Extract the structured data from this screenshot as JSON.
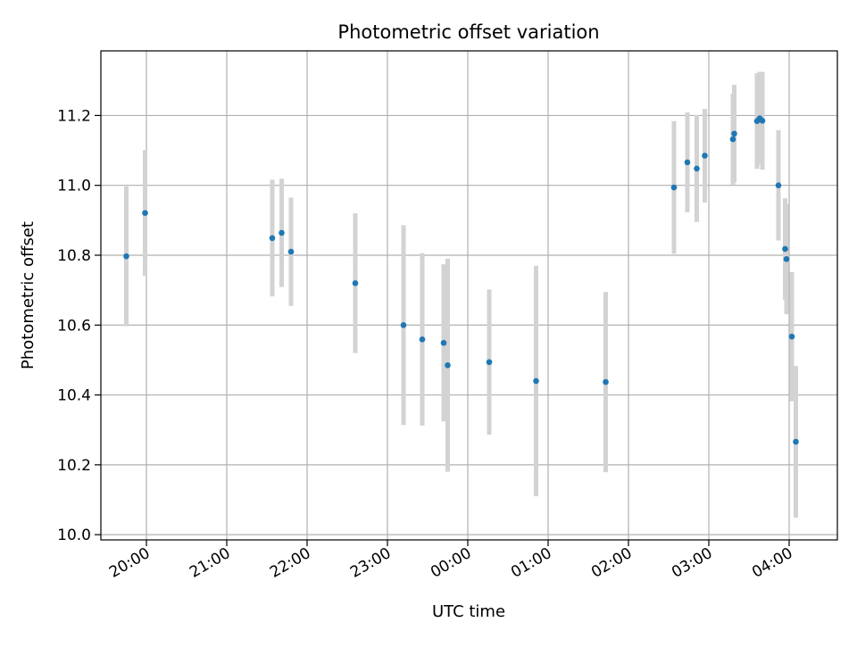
{
  "chart_data": {
    "type": "scatter",
    "title": "Photometric offset variation",
    "xlabel": "UTC time",
    "ylabel": "Photometric offset",
    "x_unit": "time",
    "xlim": [
      "19:26",
      "04:36"
    ],
    "ylim": [
      9.985,
      11.385
    ],
    "grid": true,
    "x_ticks": [
      "20:00",
      "21:00",
      "22:00",
      "23:00",
      "00:00",
      "01:00",
      "02:00",
      "03:00",
      "04:00"
    ],
    "y_ticks": [
      "10.0",
      "10.2",
      "10.4",
      "10.6",
      "10.8",
      "11.0",
      "11.2"
    ],
    "y_tick_values": [
      10.0,
      10.2,
      10.4,
      10.6,
      10.8,
      11.0,
      11.2
    ],
    "colors": {
      "points": "#1f77b4",
      "errorbars": "#d3d3d3",
      "grid": "#b0b0b0"
    },
    "series": [
      {
        "points": [
          {
            "x": "19:45",
            "y": 10.797,
            "yerr": 0.2
          },
          {
            "x": "19:59",
            "y": 10.921,
            "yerr": 0.18
          },
          {
            "x": "21:34",
            "y": 10.849,
            "yerr": 0.167
          },
          {
            "x": "21:41",
            "y": 10.864,
            "yerr": 0.155
          },
          {
            "x": "21:48",
            "y": 10.81,
            "yerr": 0.155
          },
          {
            "x": "22:36",
            "y": 10.72,
            "yerr": 0.2
          },
          {
            "x": "23:12",
            "y": 10.6,
            "yerr": 0.286
          },
          {
            "x": "23:26",
            "y": 10.559,
            "yerr": 0.247
          },
          {
            "x": "23:42",
            "y": 10.549,
            "yerr": 0.225
          },
          {
            "x": "23:45",
            "y": 10.485,
            "yerr": 0.305
          },
          {
            "x": "00:16",
            "y": 10.494,
            "yerr": 0.208
          },
          {
            "x": "00:51",
            "y": 10.44,
            "yerr": 0.33
          },
          {
            "x": "01:43",
            "y": 10.437,
            "yerr": 0.258
          },
          {
            "x": "02:34",
            "y": 10.994,
            "yerr": 0.19
          },
          {
            "x": "02:44",
            "y": 11.066,
            "yerr": 0.143
          },
          {
            "x": "02:51",
            "y": 11.048,
            "yerr": 0.153
          },
          {
            "x": "02:57",
            "y": 11.085,
            "yerr": 0.134
          },
          {
            "x": "03:18",
            "y": 11.132,
            "yerr": 0.13
          },
          {
            "x": "03:19",
            "y": 11.148,
            "yerr": 0.14
          },
          {
            "x": "03:36",
            "y": 11.184,
            "yerr": 0.137
          },
          {
            "x": "03:38",
            "y": 11.192,
            "yerr": 0.133
          },
          {
            "x": "03:40",
            "y": 11.185,
            "yerr": 0.14
          },
          {
            "x": "03:52",
            "y": 11.0,
            "yerr": 0.158
          },
          {
            "x": "03:57",
            "y": 10.818,
            "yerr": 0.145
          },
          {
            "x": "03:58",
            "y": 10.789,
            "yerr": 0.158
          },
          {
            "x": "04:02",
            "y": 10.567,
            "yerr": 0.185
          },
          {
            "x": "04:05",
            "y": 10.266,
            "yerr": 0.217
          }
        ]
      }
    ]
  }
}
